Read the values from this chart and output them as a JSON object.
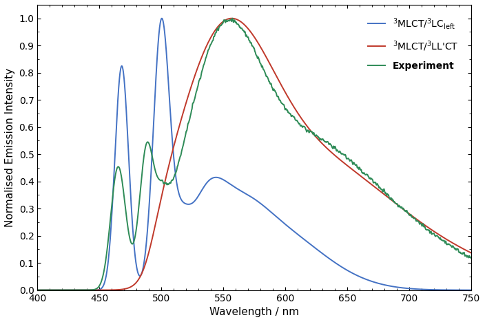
{
  "xlabel": "Wavelength / nm",
  "ylabel": "Normalised Emission Intensity",
  "xlim": [
    400,
    750
  ],
  "ylim": [
    0.0,
    1.05
  ],
  "xticks": [
    400,
    450,
    500,
    550,
    600,
    650,
    700,
    750
  ],
  "yticks": [
    0.0,
    0.1,
    0.2,
    0.3,
    0.4,
    0.5,
    0.6,
    0.7,
    0.8,
    0.9,
    1.0
  ],
  "blue_color": "#4472c4",
  "red_color": "#c0392b",
  "green_color": "#2e8b57",
  "linewidth": 1.4,
  "figsize": [
    7.04,
    4.68
  ],
  "dpi": 100
}
